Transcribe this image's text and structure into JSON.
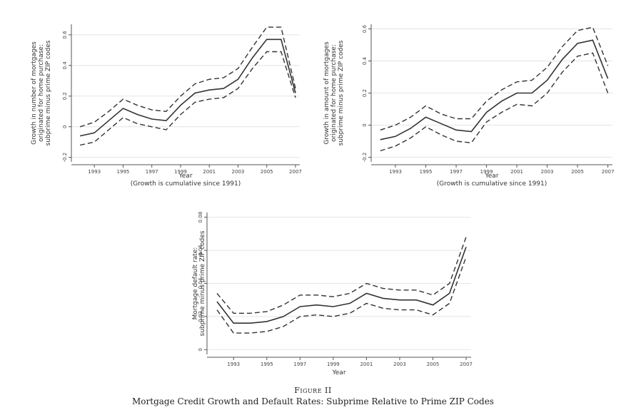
{
  "figure": {
    "number": "Figure II",
    "caption": "Mortgage Credit Growth and Default Rates: Subprime Relative to Prime ZIP Codes"
  },
  "chart_data": [
    {
      "type": "line",
      "id": "chart-tl",
      "ylabel": [
        "Growth in number of mortgages",
        "originated for home purchase:",
        "subprime minus prime ZIP codes"
      ],
      "xlabel": "Year",
      "note": "(Growth is cumulative since 1991)",
      "x": [
        1992,
        1993,
        1994,
        1995,
        1996,
        1997,
        1998,
        1999,
        2000,
        2001,
        2002,
        2003,
        2004,
        2005,
        2006,
        2007
      ],
      "xticks": [
        1993,
        1995,
        1997,
        1999,
        2001,
        2003,
        2005,
        2007
      ],
      "yticks": [
        "-0.2",
        "0",
        "0.2",
        "0.4",
        "0.6"
      ],
      "ylim": [
        -0.22,
        0.66
      ],
      "grid": true,
      "series": [
        {
          "role": "upper",
          "values": [
            0.0,
            0.03,
            0.1,
            0.18,
            0.14,
            0.11,
            0.1,
            0.2,
            0.28,
            0.31,
            0.32,
            0.38,
            0.52,
            0.65,
            0.65,
            0.25
          ]
        },
        {
          "role": "estimate",
          "values": [
            -0.06,
            -0.04,
            0.04,
            0.12,
            0.08,
            0.05,
            0.04,
            0.14,
            0.22,
            0.24,
            0.25,
            0.31,
            0.45,
            0.57,
            0.57,
            0.22
          ]
        },
        {
          "role": "lower",
          "values": [
            -0.12,
            -0.1,
            -0.02,
            0.06,
            0.02,
            0.0,
            -0.02,
            0.08,
            0.16,
            0.18,
            0.19,
            0.25,
            0.38,
            0.49,
            0.49,
            0.19
          ]
        }
      ]
    },
    {
      "type": "line",
      "id": "chart-tr",
      "ylabel": [
        "Growth in amount of mortgages",
        "originated for home purchase:",
        "subprime minus prime ZIP codes"
      ],
      "xlabel": "Year",
      "note": "(Growth is cumulative since 1991)",
      "x": [
        1992,
        1993,
        1994,
        1995,
        1996,
        1997,
        1998,
        1999,
        2000,
        2001,
        2002,
        2003,
        2004,
        2005,
        2006,
        2007
      ],
      "xticks": [
        1993,
        1995,
        1997,
        1999,
        2001,
        2003,
        2005,
        2007
      ],
      "yticks": [
        "-0.2",
        "0",
        "0.2",
        "0.4",
        "0.6"
      ],
      "ylim": [
        -0.22,
        0.62
      ],
      "grid": true,
      "series": [
        {
          "role": "upper",
          "values": [
            -0.03,
            0.0,
            0.05,
            0.12,
            0.07,
            0.04,
            0.04,
            0.15,
            0.22,
            0.27,
            0.28,
            0.36,
            0.49,
            0.59,
            0.61,
            0.37
          ]
        },
        {
          "role": "estimate",
          "values": [
            -0.09,
            -0.07,
            -0.02,
            0.05,
            0.01,
            -0.03,
            -0.04,
            0.08,
            0.15,
            0.2,
            0.2,
            0.28,
            0.41,
            0.51,
            0.53,
            0.29
          ]
        },
        {
          "role": "lower",
          "values": [
            -0.16,
            -0.13,
            -0.08,
            -0.01,
            -0.06,
            -0.1,
            -0.11,
            0.02,
            0.08,
            0.13,
            0.12,
            0.2,
            0.33,
            0.43,
            0.45,
            0.2
          ]
        }
      ]
    },
    {
      "type": "line",
      "id": "chart-bottom",
      "ylabel": [
        "Mortgage default rate:",
        "subprime minus prime ZIP codes"
      ],
      "xlabel": "Year",
      "x": [
        1992,
        1993,
        1994,
        1995,
        1996,
        1997,
        1998,
        1999,
        2000,
        2001,
        2002,
        2003,
        2004,
        2005,
        2006,
        2007
      ],
      "xticks": [
        1993,
        1995,
        1997,
        1999,
        2001,
        2003,
        2005,
        2007
      ],
      "yticks": [
        "0",
        "0.02",
        "0.04",
        "0.06",
        "0.08"
      ],
      "ylim": [
        -0.002,
        0.082
      ],
      "grid": true,
      "series": [
        {
          "role": "upper",
          "values": [
            0.034,
            0.022,
            0.022,
            0.023,
            0.027,
            0.033,
            0.033,
            0.032,
            0.034,
            0.04,
            0.037,
            0.036,
            0.036,
            0.033,
            0.04,
            0.068
          ]
        },
        {
          "role": "estimate",
          "values": [
            0.029,
            0.016,
            0.016,
            0.017,
            0.02,
            0.026,
            0.027,
            0.026,
            0.028,
            0.034,
            0.031,
            0.03,
            0.03,
            0.027,
            0.034,
            0.062
          ]
        },
        {
          "role": "lower",
          "values": [
            0.024,
            0.01,
            0.01,
            0.011,
            0.014,
            0.02,
            0.021,
            0.02,
            0.022,
            0.028,
            0.025,
            0.024,
            0.024,
            0.021,
            0.028,
            0.056
          ]
        }
      ]
    }
  ]
}
